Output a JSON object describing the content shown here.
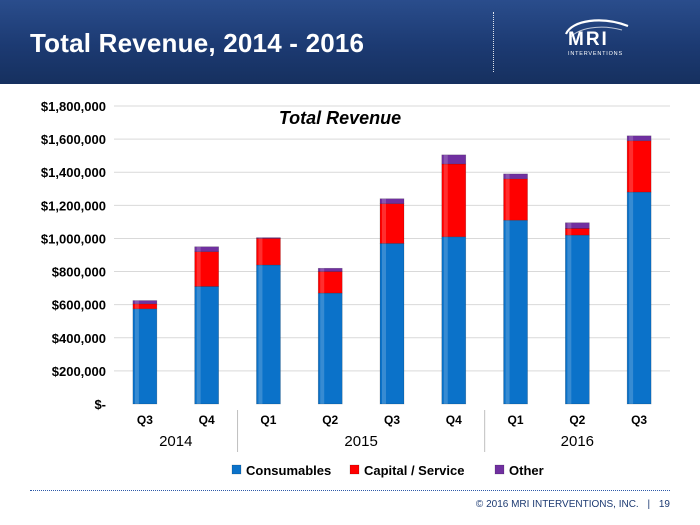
{
  "slide": {
    "title": "Total Revenue, 2014 - 2016",
    "logo_text": "MRI",
    "logo_subtext": "INTERVENTIONS",
    "footer_copyright": "© 2016 MRI INTERVENTIONS, INC.",
    "footer_separator": "|",
    "page_number": "19"
  },
  "colors": {
    "header_bg": "#1c3a72",
    "consumables": "#0b72c9",
    "capital_service": "#ff0000",
    "other": "#7030a0"
  },
  "chart_data": {
    "type": "bar",
    "stacked": true,
    "title": "Total Revenue",
    "categories": [
      "Q3",
      "Q4",
      "Q1",
      "Q2",
      "Q3",
      "Q4",
      "Q1",
      "Q2",
      "Q3"
    ],
    "year_groups": [
      {
        "label": "2014",
        "span": 2
      },
      {
        "label": "2015",
        "span": 4
      },
      {
        "label": "2016",
        "span": 3
      }
    ],
    "series": [
      {
        "name": "Consumables",
        "values": [
          575000,
          710000,
          840000,
          670000,
          970000,
          1010000,
          1110000,
          1020000,
          1280000
        ]
      },
      {
        "name": "Capital / Service",
        "values": [
          30000,
          210000,
          160000,
          130000,
          240000,
          440000,
          250000,
          40000,
          310000
        ]
      },
      {
        "name": "Other",
        "values": [
          20000,
          30000,
          5000,
          20000,
          30000,
          55000,
          30000,
          35000,
          30000
        ]
      }
    ],
    "ylim": [
      0,
      1800000
    ],
    "yticks": [
      0,
      200000,
      400000,
      600000,
      800000,
      1000000,
      1200000,
      1400000,
      1600000,
      1800000
    ],
    "ytick_labels": [
      "$-",
      "$200,000",
      "$400,000",
      "$600,000",
      "$800,000",
      "$1,000,000",
      "$1,200,000",
      "$1,400,000",
      "$1,600,000",
      "$1,800,000"
    ],
    "xlabel": "",
    "ylabel": "",
    "grid": true,
    "legend_position": "bottom"
  }
}
